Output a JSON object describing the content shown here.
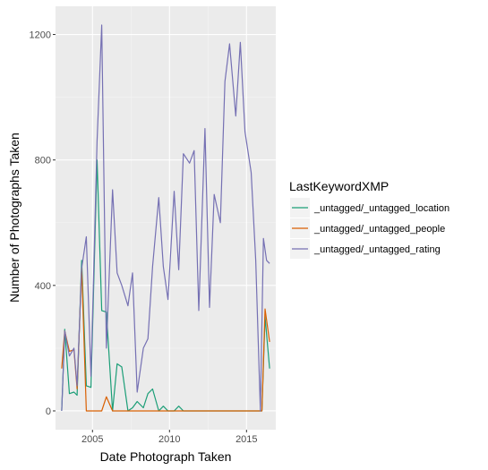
{
  "chart_data": {
    "type": "line",
    "xlabel": "Date Photograph Taken",
    "ylabel": "Number of Photographs Taken",
    "x_ticks": [
      "2005",
      "2010",
      "2015"
    ],
    "y_ticks": [
      "0",
      "400",
      "800",
      "1200"
    ],
    "xlim": [
      2002.6,
      2016.9
    ],
    "ylim": [
      -60,
      1290
    ],
    "grid": true,
    "legend": {
      "title": "LastKeywordXMP",
      "position": "right"
    },
    "series": [
      {
        "name": "_untagged/_untagged_location",
        "color": "#1b9e77",
        "x": [
          2003.0,
          2003.2,
          2003.5,
          2003.8,
          2004.0,
          2004.3,
          2004.6,
          2004.9,
          2005.3,
          2005.6,
          2005.9,
          2006.3,
          2006.6,
          2006.9,
          2007.3,
          2007.6,
          2007.9,
          2008.3,
          2008.6,
          2008.9,
          2009.3,
          2009.6,
          2009.9,
          2010.3,
          2010.6,
          2010.9,
          2011.5,
          2012.5,
          2013.5,
          2014.5,
          2015.5,
          2016.0,
          2016.2,
          2016.5
        ],
        "y": [
          0,
          260,
          55,
          60,
          50,
          480,
          80,
          75,
          800,
          320,
          315,
          0,
          150,
          140,
          0,
          10,
          30,
          10,
          55,
          70,
          0,
          15,
          0,
          0,
          15,
          0,
          0,
          0,
          0,
          0,
          0,
          0,
          300,
          135
        ]
      },
      {
        "name": "_untagged/_untagged_people",
        "color": "#d95f02",
        "x": [
          2003.0,
          2003.2,
          2003.5,
          2003.8,
          2004.0,
          2004.3,
          2004.6,
          2004.9,
          2005.3,
          2005.6,
          2005.9,
          2006.3,
          2007.5,
          2009.0,
          2010.5,
          2012.0,
          2013.5,
          2015.0,
          2016.0,
          2016.2,
          2016.5
        ],
        "y": [
          135,
          255,
          190,
          195,
          70,
          455,
          0,
          0,
          0,
          0,
          45,
          0,
          0,
          0,
          0,
          0,
          0,
          0,
          0,
          325,
          220
        ]
      },
      {
        "name": "_untagged/_untagged_rating",
        "color": "#7570b3",
        "x": [
          2003.0,
          2003.2,
          2003.5,
          2003.8,
          2004.0,
          2004.3,
          2004.6,
          2004.9,
          2005.3,
          2005.6,
          2005.9,
          2006.3,
          2006.6,
          2006.9,
          2007.3,
          2007.6,
          2007.9,
          2008.3,
          2008.6,
          2008.9,
          2009.3,
          2009.6,
          2009.9,
          2010.3,
          2010.6,
          2010.9,
          2011.3,
          2011.6,
          2011.9,
          2012.3,
          2012.6,
          2012.9,
          2013.3,
          2013.6,
          2013.9,
          2014.3,
          2014.6,
          2014.9,
          2015.3,
          2015.6,
          2015.9,
          2016.1,
          2016.3,
          2016.5
        ],
        "y": [
          0,
          255,
          175,
          200,
          80,
          455,
          555,
          110,
          860,
          1230,
          200,
          705,
          440,
          400,
          335,
          440,
          60,
          200,
          230,
          460,
          680,
          460,
          355,
          700,
          450,
          820,
          790,
          830,
          320,
          900,
          330,
          690,
          600,
          1050,
          1170,
          940,
          1175,
          890,
          760,
          480,
          0,
          550,
          480,
          470
        ]
      }
    ]
  }
}
